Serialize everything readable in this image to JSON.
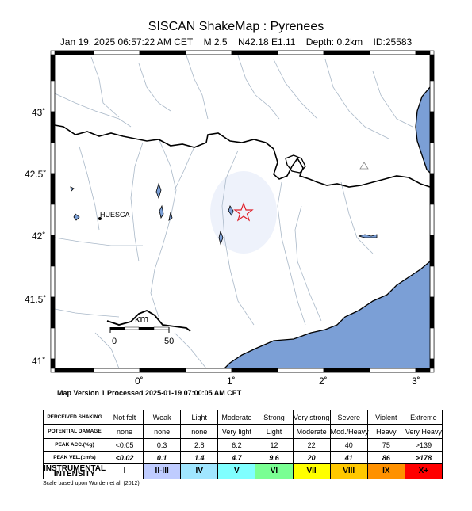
{
  "header": {
    "title": "SISCAN ShakeMap : Pyrenees",
    "datetime": "Jan 19, 2025 06:57:22 AM CET",
    "magnitude": "M 2.5",
    "location": "N42.18 E1.11",
    "depth": "Depth: 0.2km",
    "event_id": "ID:25583"
  },
  "map": {
    "lat_labels": [
      "43˚",
      "42.5˚",
      "42˚",
      "41.5˚",
      "41˚"
    ],
    "lon_labels": [
      "0˚",
      "1˚",
      "2˚",
      "3˚"
    ],
    "city": "HUESCA",
    "scale_unit": "km",
    "scale_ticks": [
      "0",
      "50"
    ],
    "colors": {
      "sea": "#7b9fd6",
      "rivers": "#a9b8c8",
      "border": "#000000",
      "epicenter": "#e0202a"
    }
  },
  "version_text": "Map Version 1 Processed 2025-01-19 07:00:05 AM CET",
  "legend": {
    "rows": [
      {
        "label": "PERCEIVED SHAKING",
        "cells": [
          "Not felt",
          "Weak",
          "Light",
          "Moderate",
          "Strong",
          "Very strong",
          "Severe",
          "Violent",
          "Extreme"
        ]
      },
      {
        "label": "POTENTIAL DAMAGE",
        "cells": [
          "none",
          "none",
          "none",
          "Very light",
          "Light",
          "Moderate",
          "Mod./Heavy",
          "Heavy",
          "Very Heavy"
        ]
      },
      {
        "label": "PEAK ACC.(%g)",
        "cells": [
          "<0.05",
          "0.3",
          "2.8",
          "6.2",
          "12",
          "22",
          "40",
          "75",
          ">139"
        ]
      },
      {
        "label": "PEAK VEL.(cm/s)",
        "cells": [
          "<0.02",
          "0.1",
          "1.4",
          "4.7",
          "9.6",
          "20",
          "41",
          "86",
          ">178"
        ]
      },
      {
        "label": "INSTRUMENTAL INTENSITY",
        "cells": [
          "I",
          "II-III",
          "IV",
          "V",
          "VI",
          "VII",
          "VIII",
          "IX",
          "X+"
        ]
      }
    ],
    "intensity_colors": [
      "#ffffff",
      "#bfccff",
      "#a0e6ff",
      "#80ffff",
      "#7aff93",
      "#ffff00",
      "#ffc800",
      "#ff9100",
      "#ff0000"
    ]
  },
  "credit": "Scale based upon Worden et al. (2012)"
}
